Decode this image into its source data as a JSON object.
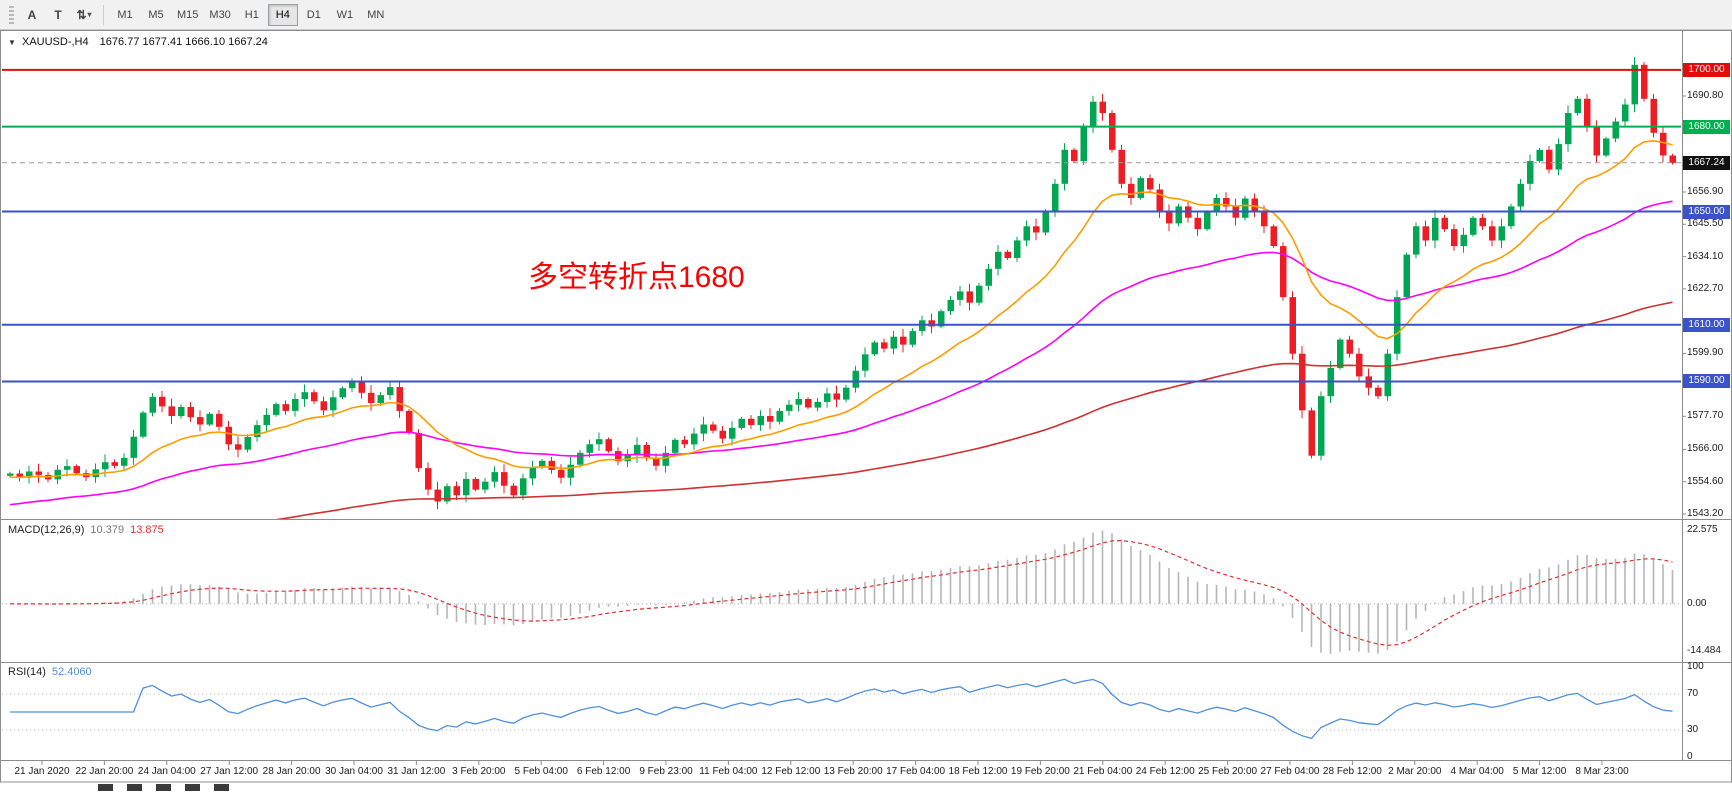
{
  "header": {
    "caret": "▼",
    "symbol": "XAUUSD-,H4",
    "ohlc": "1676.77 1677.41 1666.10 1667.24"
  },
  "toolbar": {
    "tools": [
      {
        "label": "A"
      },
      {
        "label": "T"
      },
      {
        "label": "⇅",
        "caret": "▾"
      }
    ],
    "timeframes": [
      "M1",
      "M5",
      "M15",
      "M30",
      "H1",
      "H4",
      "D1",
      "W1",
      "MN"
    ],
    "active_timeframe": "H4"
  },
  "annotation": {
    "text": "多空转折点1680"
  },
  "current_price": {
    "label": "1667.24",
    "price": 1667.24
  },
  "levels": [
    {
      "label": "1700.00",
      "price": 1700.0,
      "color_key": "level_red"
    },
    {
      "label": "1680.00",
      "price": 1680.0,
      "color_key": "level_green"
    },
    {
      "label": "1650.00",
      "price": 1650.0,
      "color_key": "level_blue"
    },
    {
      "label": "1610.00",
      "price": 1610.0,
      "color_key": "level_blue"
    },
    {
      "label": "1590.00",
      "price": 1590.0,
      "color_key": "level_blue"
    }
  ],
  "price_axis": {
    "ticks": [
      {
        "label": "1690.80",
        "price": 1690.8
      },
      {
        "label": "1656.90",
        "price": 1656.9
      },
      {
        "label": "1645.50",
        "price": 1645.5
      },
      {
        "label": "1634.10",
        "price": 1634.1
      },
      {
        "label": "1622.70",
        "price": 1622.7
      },
      {
        "label": "1599.90",
        "price": 1599.9
      },
      {
        "label": "1577.70",
        "price": 1577.7
      },
      {
        "label": "1566.00",
        "price": 1566.0
      },
      {
        "label": "1554.60",
        "price": 1554.6
      },
      {
        "label": "1543.20",
        "price": 1543.2
      }
    ]
  },
  "macd": {
    "name": "MACD(12,26,9)",
    "value_main": "10.379",
    "value_signal": "13.875",
    "scale": [
      {
        "label": "22.575",
        "value": 22.575
      },
      {
        "label": "0.00",
        "value": 0
      },
      {
        "label": "-14.484",
        "value": -14.484
      }
    ]
  },
  "rsi": {
    "name": "RSI(14)",
    "value": "52.4060",
    "scale": [
      {
        "label": "100",
        "value": 100
      },
      {
        "label": "70",
        "value": 70
      },
      {
        "label": "30",
        "value": 30
      },
      {
        "label": "0",
        "value": 0
      }
    ],
    "guide_levels": [
      70,
      30
    ]
  },
  "time_axis": {
    "labels": [
      "21 Jan 2020",
      "22 Jan 20:00",
      "24 Jan 04:00",
      "27 Jan 12:00",
      "28 Jan 20:00",
      "30 Jan 04:00",
      "31 Jan 12:00",
      "3 Feb 20:00",
      "5 Feb 04:00",
      "6 Feb 12:00",
      "9 Feb 23:00",
      "11 Feb 04:00",
      "12 Feb 12:00",
      "13 Feb 20:00",
      "17 Feb 04:00",
      "18 Feb 12:00",
      "19 Feb 20:00",
      "21 Feb 04:00",
      "24 Feb 12:00",
      "25 Feb 20:00",
      "27 Feb 04:00",
      "28 Feb 12:00",
      "2 Mar 20:00",
      "4 Mar 04:00",
      "5 Mar 12:00",
      "8 Mar 23:00"
    ]
  },
  "colors": {
    "up_candle": "#00a651",
    "down_candle": "#ee1c25",
    "ma_fast": "#ff9c00",
    "ma_mid": "#ff00ff",
    "ma_slow": "#d03030",
    "level_red": "#e40b0b",
    "level_green": "#00b050",
    "level_blue": "#3a52cc",
    "current_price_bg": "#111111",
    "macd_histogram": "#b5b5b5",
    "macd_signal": "#e03131",
    "rsi_line": "#4f8fde",
    "annotation_red": "#ff0000"
  },
  "chart_data": {
    "type": "candlestick",
    "symbol": "XAUUSD-",
    "timeframe": "H4",
    "title": "XAUUSD-,H4",
    "ohlc_last_bar": {
      "open": 1676.77,
      "high": 1677.41,
      "low": 1666.1,
      "close": 1667.24
    },
    "price_axis_visible_range": [
      1541.4,
      1712.0
    ],
    "price_grid_step": 11.4,
    "horizontal_levels": [
      1700.0,
      1680.0,
      1650.0,
      1610.0,
      1590.0
    ],
    "moving_averages": [
      {
        "name": "fast",
        "color": "#ff9c00"
      },
      {
        "name": "medium",
        "color": "#ff00ff"
      },
      {
        "name": "slow",
        "color": "#d03030"
      }
    ],
    "indicators": [
      {
        "name": "MACD",
        "params": [
          12,
          26,
          9
        ],
        "values_shown": [
          10.379,
          13.875
        ],
        "scale": [
          22.575,
          0.0,
          -14.484
        ]
      },
      {
        "name": "RSI",
        "params": [
          14
        ],
        "value_shown": 52.406,
        "scale": [
          100,
          70,
          30,
          0
        ]
      }
    ],
    "closes": [
      1557.5,
      1556.0,
      1558.2,
      1557.0,
      1555.4,
      1558.8,
      1560.1,
      1557.6,
      1556.2,
      1559.0,
      1561.5,
      1560.2,
      1563.0,
      1570.5,
      1579.0,
      1584.6,
      1581.2,
      1577.8,
      1581.0,
      1577.4,
      1574.8,
      1578.6,
      1574.0,
      1567.8,
      1565.9,
      1570.4,
      1574.6,
      1578.2,
      1582.0,
      1579.6,
      1583.8,
      1586.2,
      1583.0,
      1579.8,
      1584.4,
      1587.6,
      1589.8,
      1586.0,
      1582.4,
      1585.2,
      1588.0,
      1579.6,
      1571.8,
      1559.4,
      1551.8,
      1547.6,
      1553.0,
      1549.8,
      1555.6,
      1551.8,
      1554.6,
      1558.0,
      1553.2,
      1549.8,
      1555.8,
      1559.6,
      1562.0,
      1558.8,
      1556.0,
      1560.6,
      1564.8,
      1567.8,
      1569.6,
      1565.4,
      1561.8,
      1564.0,
      1567.6,
      1563.0,
      1560.2,
      1564.8,
      1569.4,
      1567.8,
      1571.6,
      1574.8,
      1572.6,
      1569.8,
      1573.6,
      1576.8,
      1574.6,
      1577.8,
      1575.8,
      1579.6,
      1581.8,
      1583.8,
      1580.8,
      1582.8,
      1585.8,
      1583.6,
      1587.8,
      1593.8,
      1599.6,
      1603.8,
      1601.6,
      1605.8,
      1603.0,
      1607.8,
      1611.6,
      1609.4,
      1614.8,
      1618.8,
      1621.8,
      1617.8,
      1623.8,
      1629.8,
      1635.8,
      1633.6,
      1639.8,
      1644.8,
      1642.6,
      1649.8,
      1659.8,
      1671.8,
      1667.8,
      1679.8,
      1688.8,
      1684.8,
      1671.8,
      1659.8,
      1654.8,
      1661.8,
      1657.8,
      1649.8,
      1645.8,
      1651.8,
      1647.8,
      1643.8,
      1649.8,
      1654.8,
      1651.8,
      1647.8,
      1654.6,
      1649.8,
      1644.8,
      1637.8,
      1619.8,
      1599.8,
      1579.8,
      1563.8,
      1584.8,
      1594.8,
      1604.8,
      1599.8,
      1591.8,
      1587.8,
      1584.8,
      1599.8,
      1619.8,
      1634.8,
      1644.8,
      1639.8,
      1647.8,
      1643.8,
      1637.8,
      1641.8,
      1647.8,
      1644.8,
      1639.8,
      1644.8,
      1651.8,
      1659.8,
      1667.8,
      1671.8,
      1664.8,
      1673.8,
      1684.8,
      1689.8,
      1679.8,
      1669.8,
      1675.8,
      1681.8,
      1687.8,
      1701.8,
      1689.8,
      1677.8,
      1669.8,
      1667.2
    ]
  }
}
